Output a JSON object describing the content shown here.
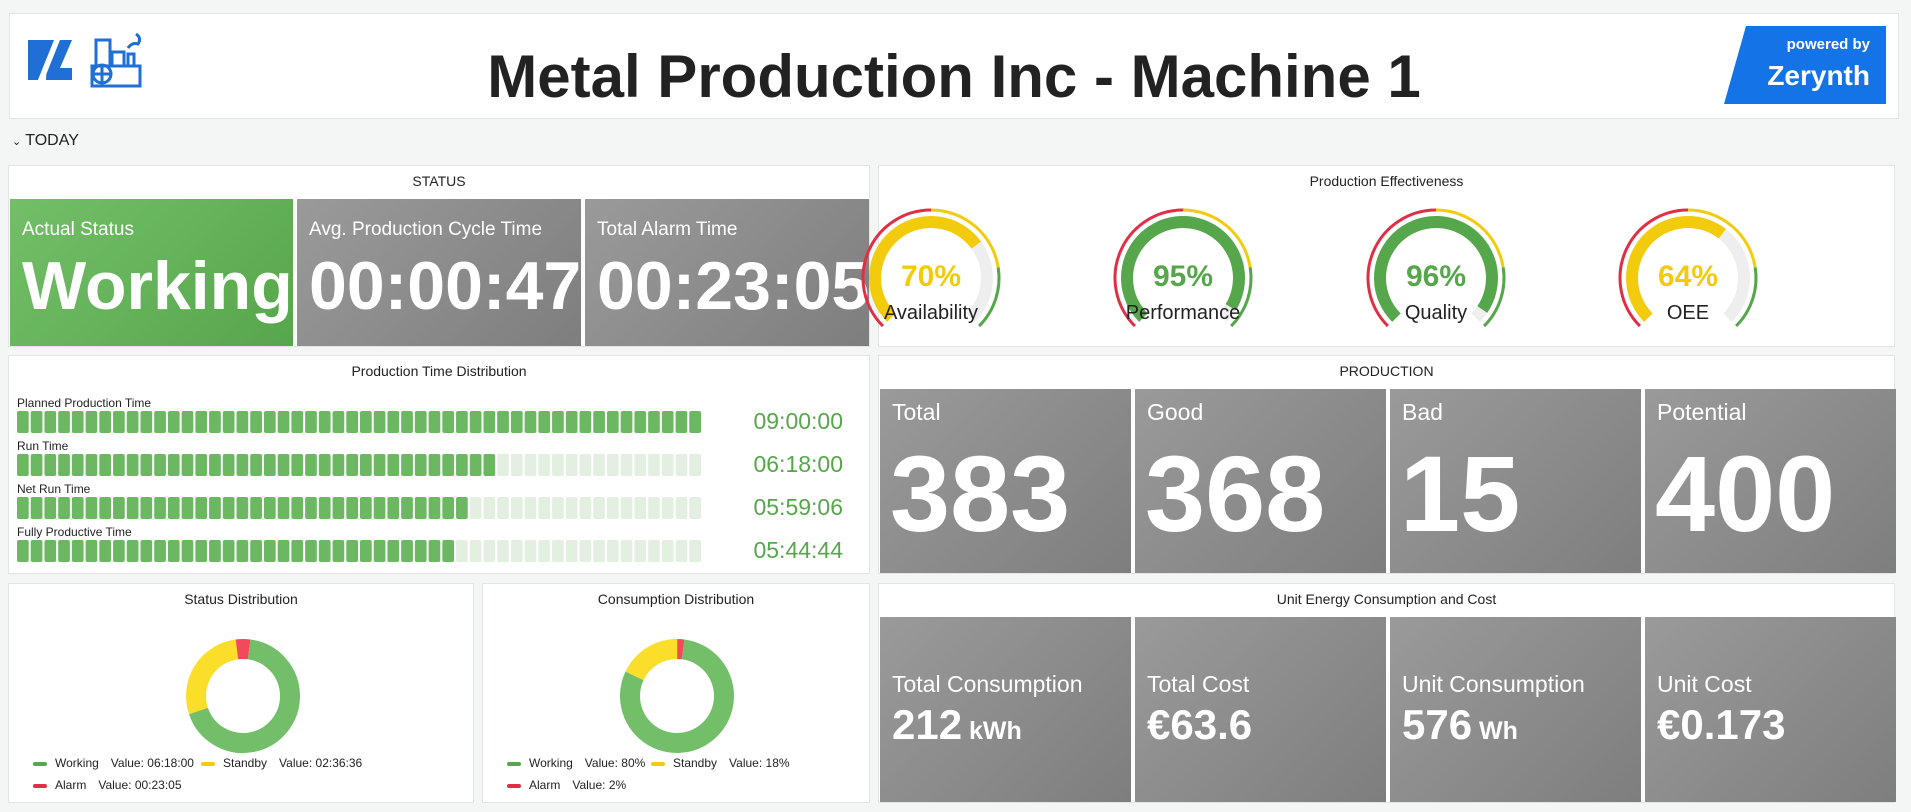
{
  "header": {
    "title": "Metal Production Inc - Machine 1",
    "brand_top": "powered by",
    "brand_name": "Zerynth"
  },
  "row_toggle": {
    "label": "TODAY"
  },
  "status": {
    "title": "STATUS",
    "actual": {
      "label": "Actual Status",
      "value": "Working"
    },
    "cycle": {
      "label": "Avg. Production Cycle Time",
      "value": "00:00:47"
    },
    "alarm": {
      "label": "Total Alarm Time",
      "value": "00:23:05"
    }
  },
  "effectiveness": {
    "title": "Production Effectiveness",
    "gauges": [
      {
        "label": "Availability",
        "value": 70,
        "display": "70%",
        "color": "#f2cc0c"
      },
      {
        "label": "Performance",
        "value": 95,
        "display": "95%",
        "color": "#56a64b"
      },
      {
        "label": "Quality",
        "value": 96,
        "display": "96%",
        "color": "#56a64b"
      },
      {
        "label": "OEE",
        "value": 64,
        "display": "64%",
        "color": "#f2cc0c"
      }
    ]
  },
  "time_distribution": {
    "title": "Production Time Distribution",
    "rows": [
      {
        "label": "Planned Production Time",
        "value": "09:00:00",
        "fraction": 1.0
      },
      {
        "label": "Run Time",
        "value": "06:18:00",
        "fraction": 0.7
      },
      {
        "label": "Net Run Time",
        "value": "05:59:06",
        "fraction": 0.665
      },
      {
        "label": "Fully Productive Time",
        "value": "05:44:44",
        "fraction": 0.64
      }
    ]
  },
  "production": {
    "title": "PRODUCTION",
    "cards": [
      {
        "label": "Total",
        "value": "383"
      },
      {
        "label": "Good",
        "value": "368"
      },
      {
        "label": "Bad",
        "value": "15"
      },
      {
        "label": "Potential",
        "value": "400"
      }
    ]
  },
  "status_distribution": {
    "title": "Status Distribution",
    "legend": [
      {
        "name": "Working",
        "value_label": "Value: 06:18:00",
        "color": "#56a64b"
      },
      {
        "name": "Standby",
        "value_label": "Value: 02:36:36",
        "color": "#f2cc0c"
      },
      {
        "name": "Alarm",
        "value_label": "Value: 00:23:05",
        "color": "#e02f44"
      }
    ],
    "slices": [
      {
        "name": "Working",
        "value": 378,
        "color": "#73bf69"
      },
      {
        "name": "Standby",
        "value": 156.6,
        "color": "#fade2a"
      },
      {
        "name": "Alarm",
        "value": 23.08,
        "color": "#f2495c"
      }
    ]
  },
  "consumption_distribution": {
    "title": "Consumption Distribution",
    "legend": [
      {
        "name": "Working",
        "value_label": "Value: 80%",
        "color": "#56a64b"
      },
      {
        "name": "Standby",
        "value_label": "Value: 18%",
        "color": "#f2cc0c"
      },
      {
        "name": "Alarm",
        "value_label": "Value: 2%",
        "color": "#e02f44"
      }
    ],
    "slices": [
      {
        "name": "Working",
        "value": 80,
        "color": "#73bf69"
      },
      {
        "name": "Standby",
        "value": 18,
        "color": "#fade2a"
      },
      {
        "name": "Alarm",
        "value": 2,
        "color": "#f2495c"
      }
    ]
  },
  "energy": {
    "title": "Unit Energy Consumption and Cost",
    "cards": [
      {
        "label": "Total Consumption",
        "value": "212",
        "unit": "kWh"
      },
      {
        "label": "Total Cost",
        "value": "€63.6",
        "unit": ""
      },
      {
        "label": "Unit Consumption",
        "value": "576",
        "unit": "Wh"
      },
      {
        "label": "Unit Cost",
        "value": "€0.173",
        "unit": ""
      }
    ]
  }
}
